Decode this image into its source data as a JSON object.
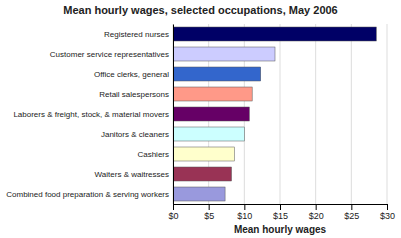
{
  "chart_data": {
    "type": "bar",
    "orientation": "horizontal",
    "title": "Mean hourly wages, selected occupations, May 2006",
    "categories": [
      "Combined food preparation & serving workers",
      "Waiters & waitresses",
      "Cashiers",
      "Janitors & cleaners",
      "Laborers & freight, stock, & material movers",
      "Retail salespersons",
      "Office clerks, general",
      "Customer service representatives",
      "Registered nurses"
    ],
    "values": [
      7.3,
      8.2,
      8.6,
      10.0,
      10.7,
      11.1,
      12.3,
      14.3,
      28.5
    ],
    "colors": [
      "#9999dd",
      "#993355",
      "#ffffcc",
      "#ccffff",
      "#660066",
      "#ff9988",
      "#3366cc",
      "#ccccff",
      "#000066"
    ],
    "xlabel": "Mean hourly wages",
    "xlim": [
      0,
      30
    ],
    "xticks": [
      {
        "value": 0,
        "label": "$0"
      },
      {
        "value": 5,
        "label": "$5"
      },
      {
        "value": 10,
        "label": "$10"
      },
      {
        "value": 15,
        "label": "$15"
      },
      {
        "value": 20,
        "label": "$20"
      },
      {
        "value": 25,
        "label": "$25"
      },
      {
        "value": 30,
        "label": "$30"
      }
    ],
    "grid": true
  }
}
